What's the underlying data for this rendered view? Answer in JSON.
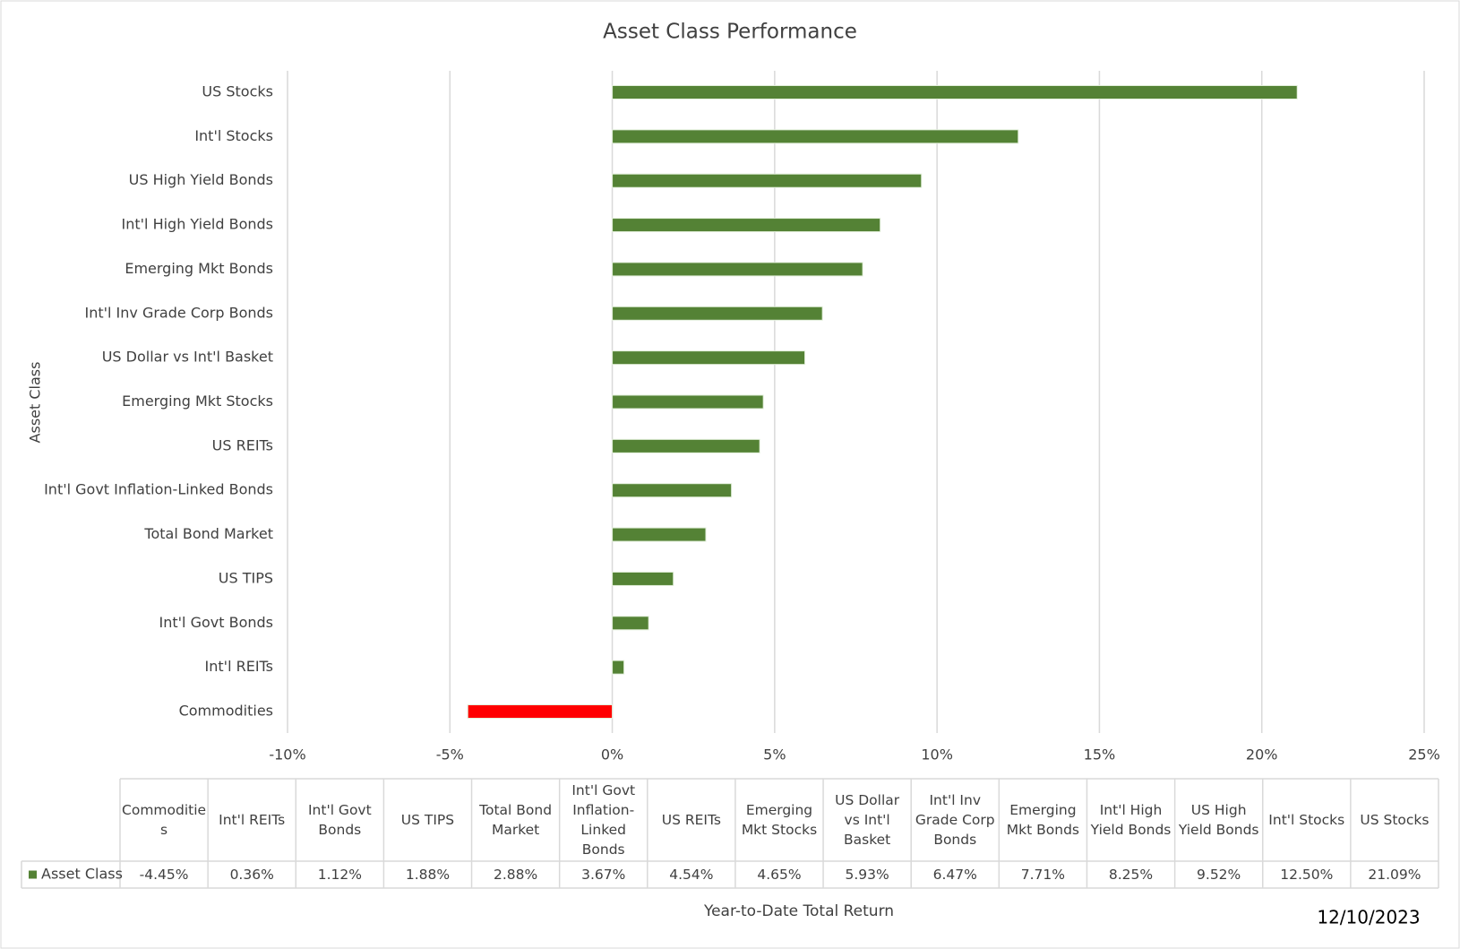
{
  "chart_data": {
    "type": "hbar",
    "title": "Asset Class Performance",
    "ylabel": "Asset Class",
    "xlabel": "Year-to-Date Total Return",
    "annotation": "12/10/2023",
    "categories": [
      "Commodities",
      "Int'l REITs",
      "Int'l Govt Bonds",
      "US TIPS",
      "Total Bond Market",
      "Int'l Govt Inflation-Linked Bonds",
      "US REITs",
      "Emerging Mkt Stocks",
      "US Dollar vs Int'l Basket",
      "Int'l Inv Grade Corp Bonds",
      "Emerging Mkt Bonds",
      "Int'l High Yield Bonds",
      "US High Yield Bonds",
      "Int'l Stocks",
      "US Stocks"
    ],
    "series": [
      {
        "name": "Asset Class",
        "color": "#548235",
        "values": [
          -4.45,
          0.36,
          1.12,
          1.88,
          2.88,
          3.67,
          4.54,
          4.65,
          5.93,
          6.47,
          7.71,
          8.25,
          9.52,
          12.5,
          21.09
        ],
        "value_labels": [
          "-4.45%",
          "0.36%",
          "1.12%",
          "1.88%",
          "2.88%",
          "3.67%",
          "4.54%",
          "4.65%",
          "5.93%",
          "6.47%",
          "7.71%",
          "8.25%",
          "9.52%",
          "12.50%",
          "21.09%"
        ]
      }
    ],
    "negative_color": "#ff0000",
    "xlim": [
      -10,
      25
    ],
    "xticks": [
      {
        "value": -10,
        "label": "-10%"
      },
      {
        "value": -5,
        "label": "-5%"
      },
      {
        "value": 0,
        "label": "0%"
      },
      {
        "value": 5,
        "label": "5%"
      },
      {
        "value": 10,
        "label": "10%"
      },
      {
        "value": 15,
        "label": "15%"
      },
      {
        "value": 20,
        "label": "20%"
      },
      {
        "value": 25,
        "label": "25%"
      }
    ],
    "grid": true
  }
}
